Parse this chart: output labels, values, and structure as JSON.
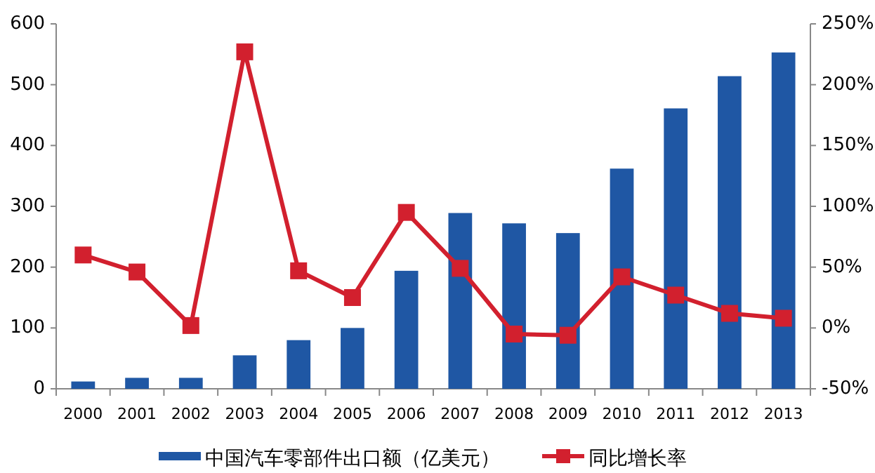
{
  "chart_data": {
    "type": "bar",
    "categories": [
      "2000",
      "2001",
      "2002",
      "2003",
      "2004",
      "2005",
      "2006",
      "2007",
      "2008",
      "2009",
      "2010",
      "2011",
      "2012",
      "2013"
    ],
    "series": [
      {
        "name": "中国汽车零部件出口额（亿美元）",
        "color": "#1f57a4",
        "values": [
          12,
          18,
          18,
          55,
          80,
          100,
          194,
          289,
          272,
          256,
          362,
          461,
          514,
          553
        ]
      },
      {
        "name": "同比增长率",
        "type": "line",
        "axis": "y2",
        "color": "#d2202e",
        "values": [
          60,
          46,
          2,
          227,
          47,
          25,
          95,
          49,
          -5,
          -6,
          42,
          27,
          12,
          8
        ]
      }
    ],
    "ylim": [
      0,
      600
    ],
    "yticks": [
      0,
      100,
      200,
      300,
      400,
      500,
      600
    ],
    "y2lim": [
      -50,
      250
    ],
    "y2ticks": [
      {
        "value": -50,
        "label": "-50%"
      },
      {
        "value": 0,
        "label": "0%"
      },
      {
        "value": 50,
        "label": "50%"
      },
      {
        "value": 100,
        "label": "100%"
      },
      {
        "value": 150,
        "label": "150%"
      },
      {
        "value": 200,
        "label": "200%"
      },
      {
        "value": 250,
        "label": "250%"
      }
    ],
    "marker": "square",
    "grid": false,
    "legend": "bottom"
  }
}
